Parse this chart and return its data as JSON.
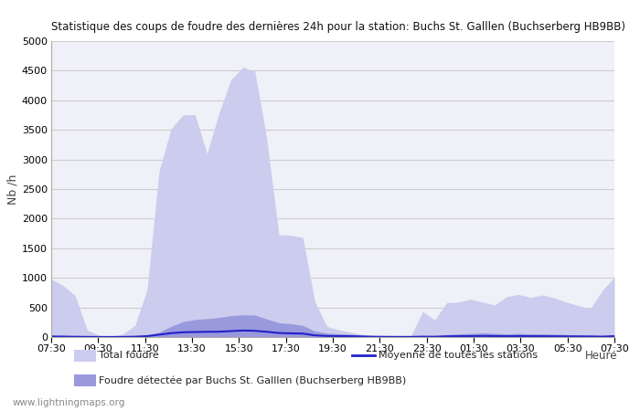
{
  "title": "Statistique des coups de foudre des dernières 24h pour la station: Buchs St. Galllen (Buchserberg HB9BB)",
  "ylabel": "Nb /h",
  "xlabel_right": "Heure",
  "watermark": "www.lightningmaps.org",
  "x_labels": [
    "07:30",
    "09:30",
    "11:30",
    "13:30",
    "15:30",
    "17:30",
    "19:30",
    "21:30",
    "23:30",
    "01:30",
    "03:30",
    "05:30",
    "07:30"
  ],
  "ylim": [
    0,
    5000
  ],
  "yticks": [
    0,
    500,
    1000,
    1500,
    2000,
    2500,
    3000,
    3500,
    4000,
    4500,
    5000
  ],
  "bg_color": "#ffffff",
  "plot_bg_color": "#f0f0f8",
  "grid_color": "#cccccc",
  "fill_total_color": "#ccccee",
  "fill_local_color": "#9999dd",
  "line_moyenne_color": "#2222cc",
  "legend_total": "Total foudre",
  "legend_local": "Foudre détectée par Buchs St. Galllen (Buchserberg HB9BB)",
  "legend_moyenne": "Moyenne de toutes les stations",
  "total_foudre": [
    980,
    870,
    700,
    120,
    30,
    10,
    50,
    200,
    800,
    2800,
    3520,
    3750,
    3760,
    3100,
    3780,
    4350,
    4560,
    4490,
    3330,
    1730,
    1720,
    1680,
    600,
    180,
    120,
    80,
    40,
    20,
    10,
    5,
    10,
    430,
    290,
    580,
    590,
    640,
    590,
    540,
    680,
    720,
    670,
    710,
    660,
    590,
    530,
    480,
    790,
    1010
  ],
  "local_foudre": [
    30,
    25,
    15,
    8,
    3,
    2,
    3,
    10,
    30,
    80,
    180,
    260,
    295,
    310,
    330,
    360,
    375,
    370,
    305,
    240,
    225,
    195,
    100,
    65,
    55,
    45,
    28,
    18,
    10,
    5,
    3,
    20,
    15,
    40,
    52,
    60,
    70,
    62,
    52,
    60,
    52,
    52,
    48,
    42,
    36,
    30,
    20,
    40
  ],
  "moyenne_foudre": [
    8,
    7,
    4,
    2,
    1,
    1,
    2,
    5,
    15,
    40,
    65,
    80,
    85,
    88,
    90,
    100,
    110,
    105,
    88,
    68,
    62,
    58,
    28,
    18,
    16,
    14,
    9,
    5,
    3,
    2,
    2,
    6,
    5,
    12,
    14,
    16,
    18,
    16,
    14,
    16,
    14,
    14,
    12,
    11,
    10,
    9,
    7,
    14
  ]
}
